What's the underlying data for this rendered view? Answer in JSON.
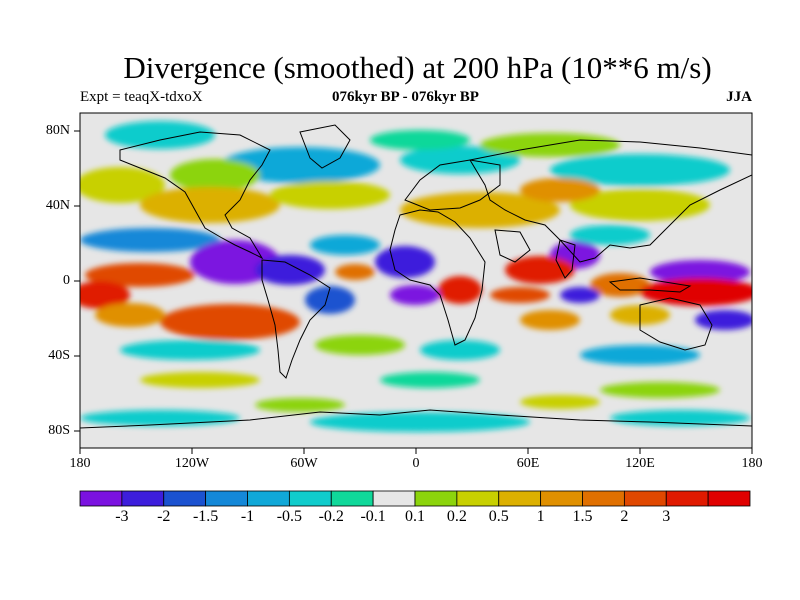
{
  "title": "Divergence (smoothed) at 200 hPa (10**6 m/s)",
  "experiment": "Expt = teaqX-tdxoX",
  "period": "076kyr BP - 076kyr BP",
  "season": "JJA",
  "lat_labels": [
    "80N",
    "40N",
    "0",
    "40S",
    "80S"
  ],
  "lon_labels": [
    "180",
    "120W",
    "60W",
    "0",
    "60E",
    "120E",
    "180"
  ],
  "colorbar": {
    "colors": [
      "#7b12e0",
      "#3d1edc",
      "#1b52d0",
      "#1488d8",
      "#10a8d8",
      "#10cccc",
      "#10d89a",
      "#e6e6e6",
      "#8cd40c",
      "#c8d000",
      "#dcb000",
      "#e09000",
      "#e07000",
      "#e04800",
      "#e01a00",
      "#e00000"
    ],
    "labels": [
      "-3",
      "-2",
      "-1.5",
      "-1",
      "-0.5",
      "-0.2",
      "-0.1",
      "0.1",
      "0.2",
      "0.5",
      "1",
      "1.5",
      "2",
      "3"
    ]
  }
}
